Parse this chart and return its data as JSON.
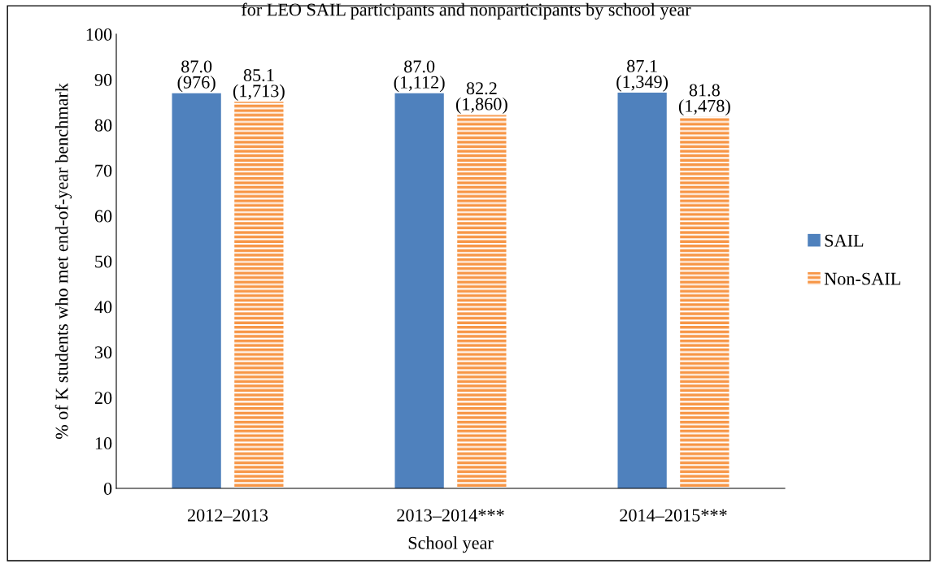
{
  "chart_data": {
    "type": "bar",
    "title": "for LEO SAIL participants and nonparticipants by school year",
    "xlabel": "School year",
    "ylabel": "% of K students who met end-of-year benchmark",
    "categories": [
      "2012–2013",
      "2013–2014***",
      "2014–2015***"
    ],
    "series": [
      {
        "name": "SAIL",
        "color": "#4f81bd",
        "values": [
          87.0,
          87.0,
          87.1
        ],
        "value_labels": [
          "87.0\n(976)",
          "87.0\n(1,112)",
          "87.1\n(1,349)"
        ]
      },
      {
        "name": "Non-SAIL",
        "color": "#f79646",
        "values": [
          85.1,
          82.2,
          81.8
        ],
        "value_labels": [
          "85.1\n(1,713)",
          "82.2\n(1,860)",
          "81.8\n(1,478)"
        ]
      }
    ],
    "ylim": [
      0,
      100
    ],
    "yticks": [
      0,
      10,
      20,
      30,
      40,
      50,
      60,
      70,
      80,
      90,
      100
    ],
    "grid": false,
    "legend": "right"
  }
}
